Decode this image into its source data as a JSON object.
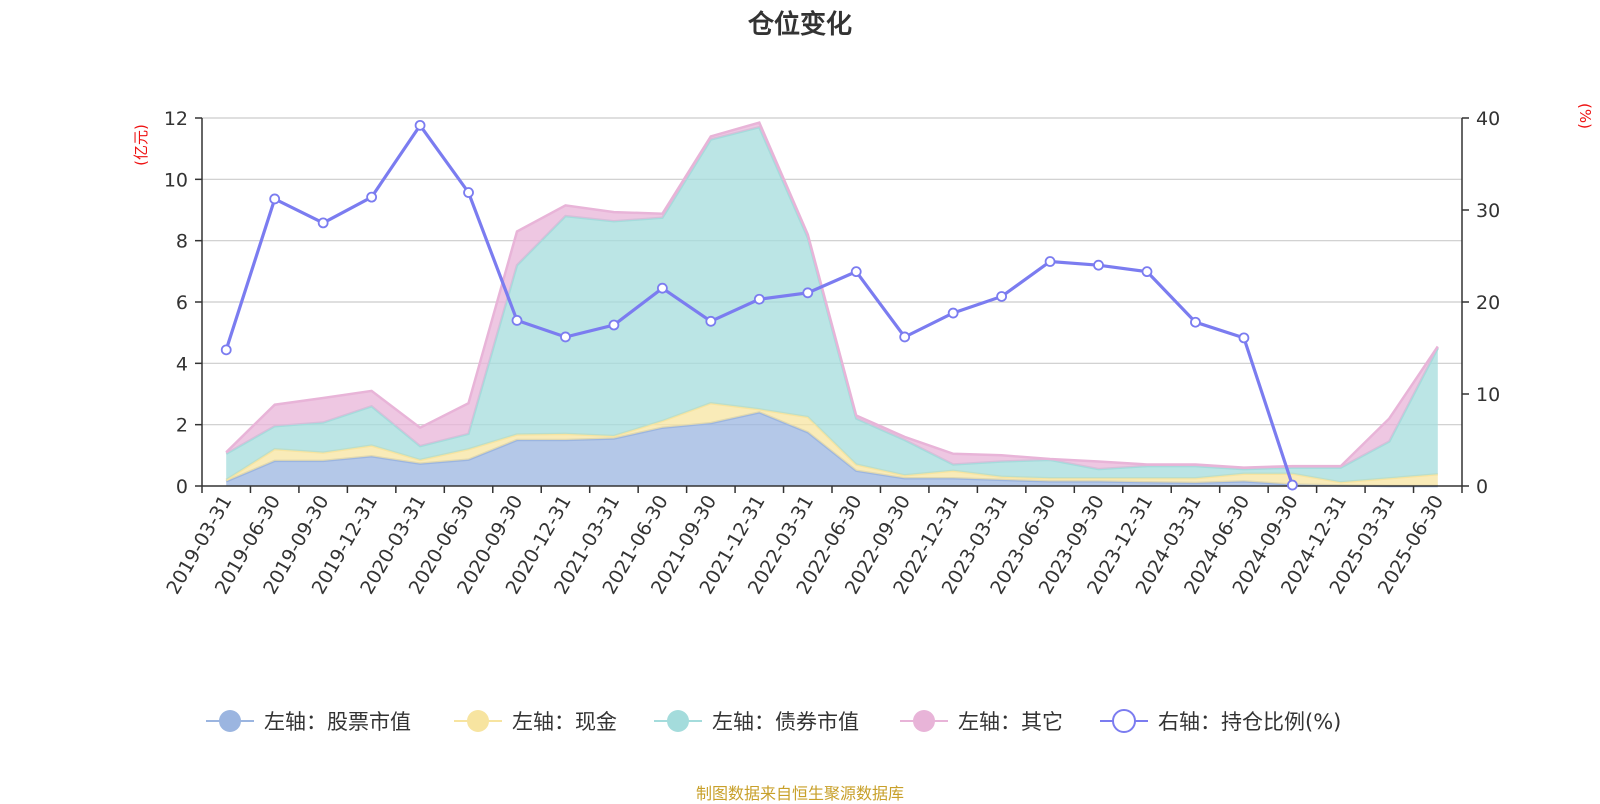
{
  "title": "仓位变化",
  "source": "制图数据来自恒生聚源数据库",
  "chart_data": {
    "type": "area",
    "stacked": true,
    "title": "仓位变化",
    "left_axis_unit": "(亿元)",
    "right_axis_unit": "(%)",
    "left_ylim": [
      0,
      12
    ],
    "left_ticks": [
      0,
      2,
      4,
      6,
      8,
      10,
      12
    ],
    "right_ylim": [
      0,
      40
    ],
    "right_ticks": [
      0,
      10,
      20,
      30,
      40
    ],
    "grid": true,
    "legend_position": "bottom",
    "categories": [
      "2019-03-31",
      "2019-06-30",
      "2019-09-30",
      "2019-12-31",
      "2020-03-31",
      "2020-06-30",
      "2020-09-30",
      "2020-12-31",
      "2021-03-31",
      "2021-06-30",
      "2021-09-30",
      "2021-12-31",
      "2022-03-31",
      "2022-06-30",
      "2022-09-30",
      "2022-12-31",
      "2023-03-31",
      "2023-06-30",
      "2023-09-30",
      "2023-12-31",
      "2024-03-31",
      "2024-06-30",
      "2024-09-30",
      "2024-12-31",
      "2025-03-31",
      "2025-06-30"
    ],
    "series": [
      {
        "name": "左轴：股票市值",
        "axis": "left",
        "kind": "area",
        "color": "#9bb5e0",
        "values": [
          0.15,
          0.82,
          0.82,
          0.97,
          0.73,
          0.86,
          1.5,
          1.5,
          1.55,
          1.9,
          2.05,
          2.4,
          1.75,
          0.5,
          0.25,
          0.25,
          0.2,
          0.15,
          0.15,
          0.12,
          0.1,
          0.15,
          0.05,
          0.02,
          0.0,
          0.0
        ]
      },
      {
        "name": "左轴：现金",
        "axis": "left",
        "kind": "area",
        "color": "#f7e4a0",
        "values": [
          0.05,
          0.38,
          0.27,
          0.35,
          0.12,
          0.34,
          0.18,
          0.2,
          0.08,
          0.22,
          0.65,
          0.1,
          0.5,
          0.2,
          0.1,
          0.25,
          0.1,
          0.1,
          0.1,
          0.13,
          0.15,
          0.25,
          0.35,
          0.1,
          0.25,
          0.38
        ]
      },
      {
        "name": "左轴：债券市值",
        "axis": "left",
        "kind": "area",
        "color": "#a4dcdc",
        "values": [
          0.85,
          0.75,
          0.98,
          1.28,
          0.45,
          0.5,
          5.52,
          7.1,
          7.0,
          6.63,
          8.6,
          9.2,
          5.85,
          1.5,
          1.15,
          0.2,
          0.5,
          0.6,
          0.3,
          0.4,
          0.4,
          0.15,
          0.2,
          0.48,
          1.2,
          4.12
        ]
      },
      {
        "name": "左轴：其它",
        "axis": "left",
        "kind": "area",
        "color": "#e8b4d8",
        "values": [
          0.05,
          0.7,
          0.8,
          0.5,
          0.6,
          1.0,
          1.1,
          0.35,
          0.3,
          0.13,
          0.1,
          0.15,
          0.1,
          0.1,
          0.1,
          0.35,
          0.2,
          0.03,
          0.25,
          0.05,
          0.05,
          0.05,
          0.05,
          0.05,
          0.75,
          0.05
        ]
      },
      {
        "name": "右轴：持仓比例(%)",
        "axis": "right",
        "kind": "line",
        "color": "#7b7cf0",
        "values": [
          14.8,
          31.2,
          28.6,
          31.4,
          39.2,
          31.9,
          18.0,
          16.2,
          17.5,
          21.5,
          17.9,
          20.3,
          21.0,
          23.3,
          16.2,
          18.8,
          20.6,
          24.4,
          24.0,
          23.3,
          17.8,
          16.1,
          0.1,
          null,
          null,
          null
        ]
      }
    ]
  }
}
